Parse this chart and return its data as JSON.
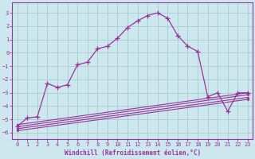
{
  "xlabel": "Windchill (Refroidissement éolien,°C)",
  "bg_color": "#cce8ee",
  "grid_color": "#aacccc",
  "line_color": "#993399",
  "xlim": [
    -0.5,
    23.5
  ],
  "ylim": [
    -6.5,
    3.8
  ],
  "yticks": [
    -6,
    -5,
    -4,
    -3,
    -2,
    -1,
    0,
    1,
    2,
    3
  ],
  "xticks": [
    0,
    1,
    2,
    3,
    4,
    5,
    6,
    7,
    8,
    9,
    10,
    11,
    12,
    13,
    14,
    15,
    16,
    17,
    18,
    19,
    20,
    21,
    22,
    23
  ],
  "main_x": [
    0,
    1,
    2,
    3,
    4,
    5,
    6,
    7,
    8,
    9,
    10,
    11,
    12,
    13,
    14,
    15,
    16,
    17,
    18,
    19,
    20,
    21,
    22,
    23
  ],
  "main_y": [
    -5.5,
    -4.9,
    -4.8,
    -2.3,
    -2.6,
    -2.4,
    -0.9,
    -0.7,
    0.3,
    0.5,
    1.1,
    1.9,
    2.4,
    2.8,
    3.0,
    2.6,
    1.3,
    0.5,
    0.1,
    -3.3,
    -3.0,
    -4.4,
    -3.0,
    -3.0
  ],
  "ref_lines": [
    {
      "x": [
        0,
        23
      ],
      "y": [
        -5.4,
        -3.0
      ]
    },
    {
      "x": [
        0,
        23
      ],
      "y": [
        -5.55,
        -3.15
      ]
    },
    {
      "x": [
        0,
        23
      ],
      "y": [
        -5.7,
        -3.35
      ]
    },
    {
      "x": [
        0,
        23
      ],
      "y": [
        -5.85,
        -3.5
      ]
    }
  ]
}
